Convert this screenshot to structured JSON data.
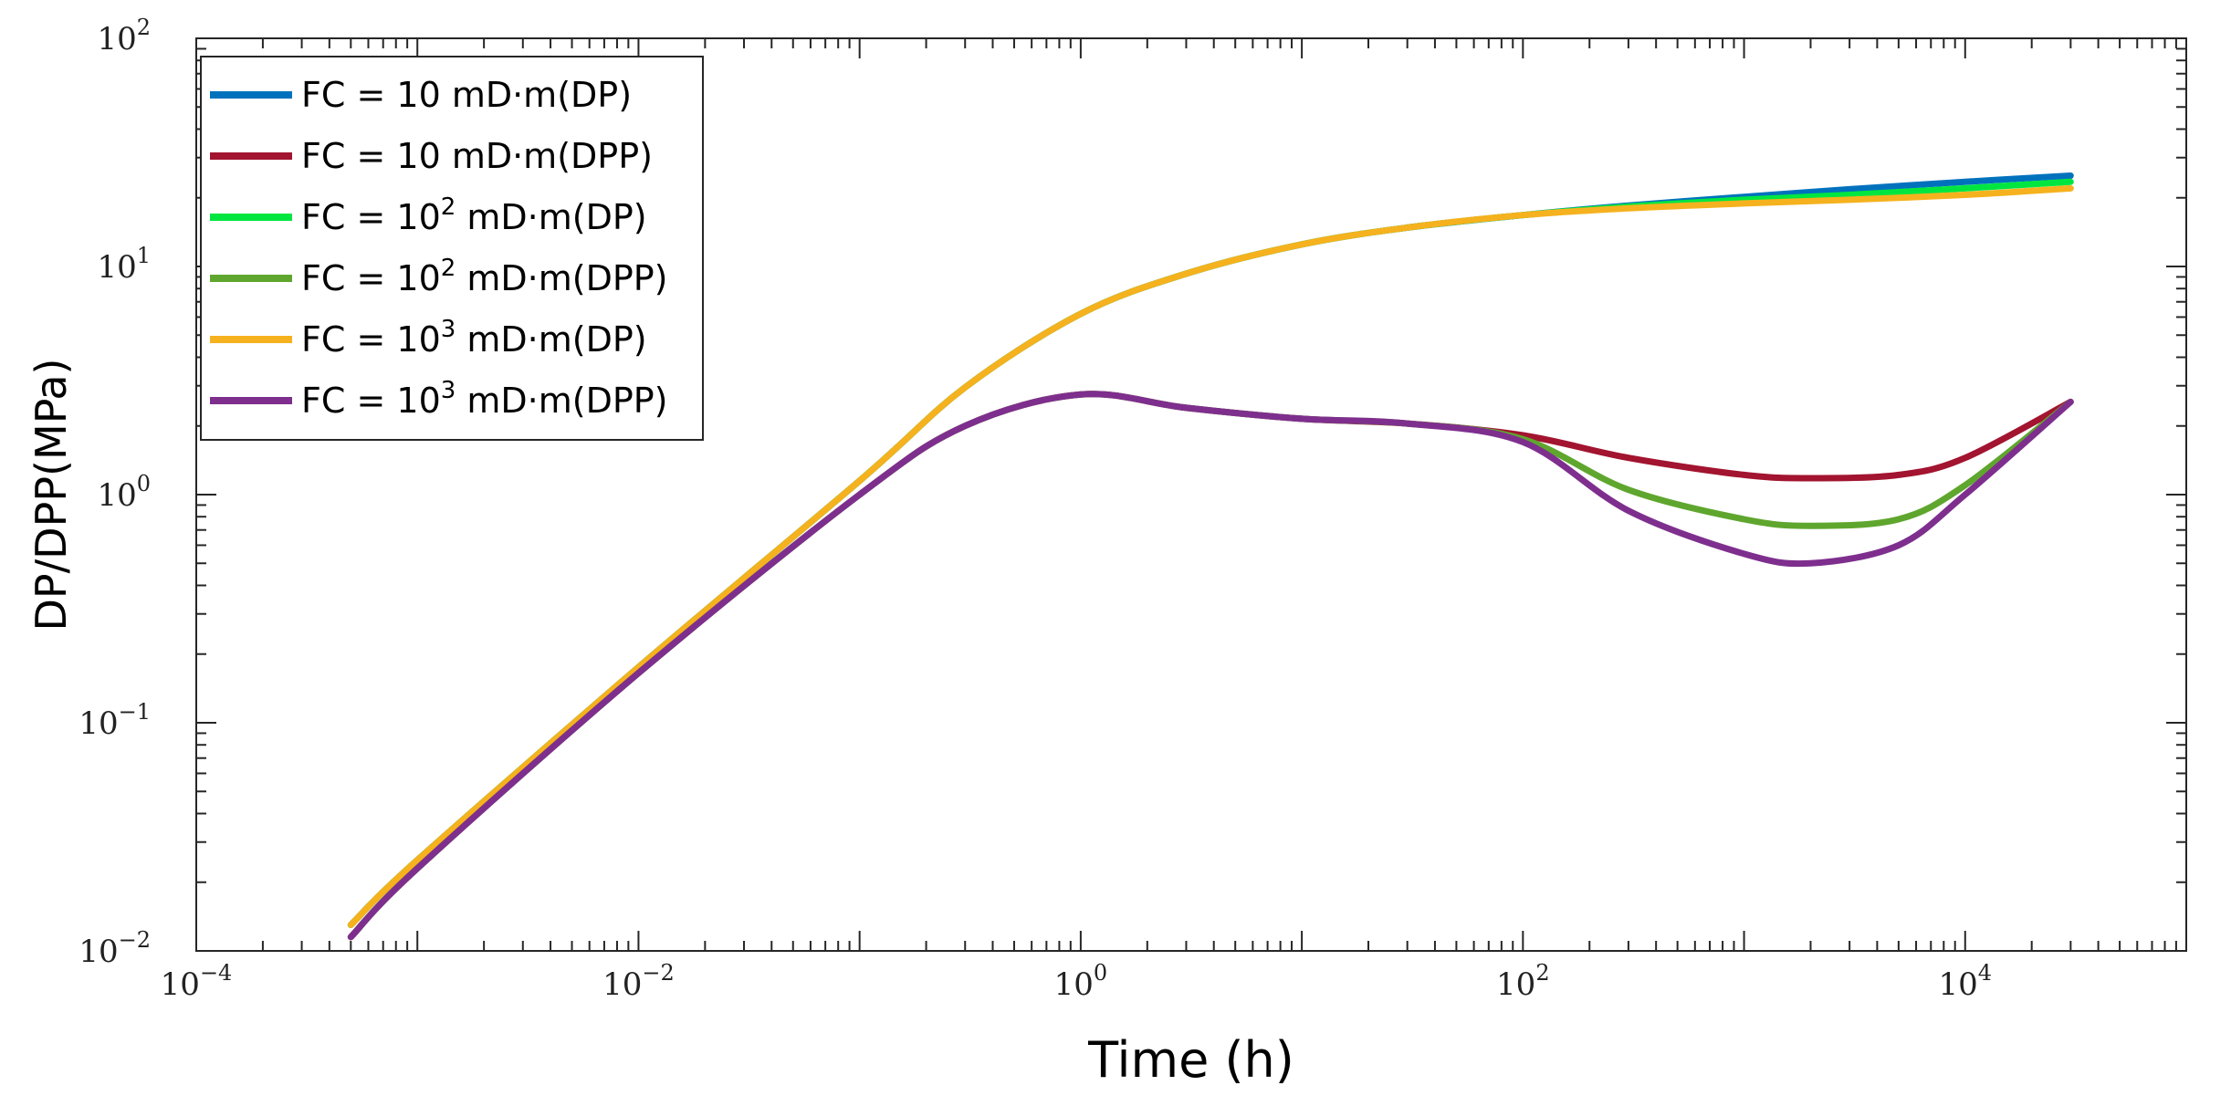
{
  "chart_data": {
    "type": "line",
    "xlabel": "Time (h)",
    "ylabel": "DP/DPP(MPa)",
    "x_scale": "log",
    "y_scale": "log",
    "xlim": [
      0.0001,
      100000
    ],
    "ylim": [
      0.01,
      100
    ],
    "x_ticks": [
      {
        "base": "10",
        "exp": "−4",
        "value": 0.0001
      },
      {
        "base": "10",
        "exp": "−2",
        "value": 0.01
      },
      {
        "base": "10",
        "exp": "0",
        "value": 1
      },
      {
        "base": "10",
        "exp": "2",
        "value": 100
      },
      {
        "base": "10",
        "exp": "4",
        "value": 10000
      }
    ],
    "y_ticks": [
      {
        "base": "10",
        "exp": "−2",
        "value": 0.01
      },
      {
        "base": "10",
        "exp": "−1",
        "value": 0.1
      },
      {
        "base": "10",
        "exp": "0",
        "value": 1
      },
      {
        "base": "10",
        "exp": "1",
        "value": 10
      },
      {
        "base": "10",
        "exp": "2",
        "value": 100
      }
    ],
    "grid": false,
    "legend_position": "top-left",
    "series": [
      {
        "name": "FC = 10 mD·m(DP)",
        "legend": {
          "pre": "FC = 10",
          "sup": "",
          "post": " mD·m(DP)"
        },
        "color": "#0072BD",
        "x": [
          0.0005,
          0.001,
          0.01,
          0.1,
          0.3,
          1,
          3,
          10,
          30,
          100,
          300,
          1000,
          3000,
          10000,
          30000
        ],
        "y": [
          0.013,
          0.025,
          0.175,
          1.15,
          2.95,
          6.2,
          9.3,
          12.5,
          14.8,
          16.8,
          18.5,
          20.2,
          21.8,
          23.5,
          25.0
        ]
      },
      {
        "name": "FC = 10 mD·m(DPP)",
        "legend": {
          "pre": "FC = 10",
          "sup": "",
          "post": " mD·m(DPP)"
        },
        "color": "#A2142F",
        "x": [
          0.0005,
          0.001,
          0.01,
          0.1,
          0.3,
          1,
          3,
          10,
          30,
          100,
          300,
          1000,
          2000,
          5000,
          10000,
          30000
        ],
        "y": [
          0.0115,
          0.023,
          0.165,
          1.0,
          2.0,
          2.75,
          2.4,
          2.15,
          2.05,
          1.82,
          1.45,
          1.22,
          1.18,
          1.22,
          1.45,
          2.55
        ]
      },
      {
        "name": "FC = 10² mD·m(DP)",
        "legend": {
          "pre": "FC = 10",
          "sup": "2",
          "post": " mD·m(DP)"
        },
        "color": "#00E640",
        "x": [
          0.0005,
          0.001,
          0.01,
          0.1,
          0.3,
          1,
          3,
          10,
          30,
          100,
          300,
          1000,
          3000,
          10000,
          30000
        ],
        "y": [
          0.013,
          0.025,
          0.175,
          1.15,
          2.95,
          6.2,
          9.3,
          12.5,
          14.8,
          16.8,
          18.3,
          19.6,
          20.6,
          22.0,
          23.5
        ]
      },
      {
        "name": "FC = 10² mD·m(DPP)",
        "legend": {
          "pre": "FC = 10",
          "sup": "2",
          "post": " mD·m(DPP)"
        },
        "color": "#5FA62E",
        "x": [
          0.0005,
          0.001,
          0.01,
          0.1,
          0.3,
          1,
          3,
          10,
          30,
          100,
          300,
          1000,
          2000,
          5000,
          10000,
          30000
        ],
        "y": [
          0.0115,
          0.023,
          0.165,
          1.0,
          2.0,
          2.75,
          2.4,
          2.15,
          2.05,
          1.75,
          1.05,
          0.78,
          0.73,
          0.78,
          1.1,
          2.55
        ]
      },
      {
        "name": "FC = 10³ mD·m(DP)",
        "legend": {
          "pre": "FC = 10",
          "sup": "3",
          "post": " mD·m(DP)"
        },
        "color": "#F5B21E",
        "x": [
          0.0005,
          0.001,
          0.01,
          0.1,
          0.3,
          1,
          3,
          10,
          30,
          100,
          300,
          1000,
          3000,
          10000,
          30000
        ],
        "y": [
          0.013,
          0.025,
          0.175,
          1.15,
          2.95,
          6.2,
          9.3,
          12.5,
          14.8,
          16.8,
          18.0,
          18.9,
          19.6,
          20.6,
          22.0
        ]
      },
      {
        "name": "FC = 10³ mD·m(DPP)",
        "legend": {
          "pre": "FC = 10",
          "sup": "3",
          "post": " mD·m(DPP)"
        },
        "color": "#7E2F8E",
        "x": [
          0.0005,
          0.001,
          0.01,
          0.1,
          0.3,
          1,
          3,
          10,
          30,
          100,
          300,
          1000,
          2000,
          5000,
          10000,
          30000
        ],
        "y": [
          0.0115,
          0.023,
          0.165,
          1.0,
          2.0,
          2.75,
          2.4,
          2.15,
          2.05,
          1.7,
          0.85,
          0.55,
          0.5,
          0.6,
          1.0,
          2.55
        ]
      }
    ]
  }
}
